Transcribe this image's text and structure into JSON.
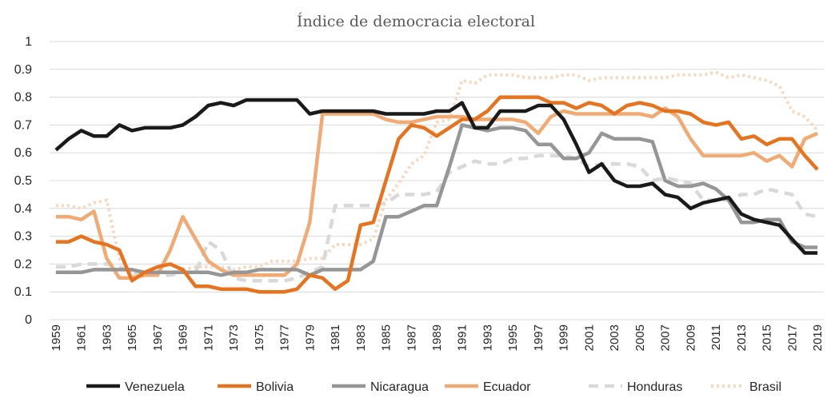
{
  "chart_data": {
    "type": "line",
    "title": "Índice de democracia electoral",
    "xlabel": "",
    "ylabel": "",
    "ylim": [
      0,
      1
    ],
    "yticks": [
      "0",
      "0.1",
      "0.2",
      "0.3",
      "0.4",
      "0.5",
      "0.6",
      "0.7",
      "0.8",
      "0.9",
      "1"
    ],
    "x": [
      1959,
      1960,
      1961,
      1962,
      1963,
      1964,
      1965,
      1966,
      1967,
      1968,
      1969,
      1970,
      1971,
      1972,
      1973,
      1974,
      1975,
      1976,
      1977,
      1978,
      1979,
      1980,
      1981,
      1982,
      1983,
      1984,
      1985,
      1986,
      1987,
      1988,
      1989,
      1990,
      1991,
      1992,
      1993,
      1994,
      1995,
      1996,
      1997,
      1998,
      1999,
      2000,
      2001,
      2002,
      2003,
      2004,
      2005,
      2006,
      2007,
      2008,
      2009,
      2010,
      2011,
      2012,
      2013,
      2014,
      2015,
      2016,
      2017,
      2018,
      2019
    ],
    "xtick_labels": [
      "1959",
      "1961",
      "1963",
      "1965",
      "1967",
      "1969",
      "1971",
      "1973",
      "1975",
      "1977",
      "1979",
      "1981",
      "1983",
      "1985",
      "1987",
      "1989",
      "1991",
      "1993",
      "1995",
      "1997",
      "1999",
      "2001",
      "2003",
      "2005",
      "2007",
      "2009",
      "2011",
      "2013",
      "2015",
      "2017",
      "2019"
    ],
    "grid": true,
    "legend_position": "bottom",
    "series": [
      {
        "name": "Venezuela",
        "color": "#1a1a1a",
        "style": "solid",
        "values": [
          0.61,
          0.65,
          0.68,
          0.66,
          0.66,
          0.7,
          0.68,
          0.69,
          0.69,
          0.69,
          0.7,
          0.73,
          0.77,
          0.78,
          0.77,
          0.79,
          0.79,
          0.79,
          0.79,
          0.79,
          0.74,
          0.75,
          0.75,
          0.75,
          0.75,
          0.75,
          0.74,
          0.74,
          0.74,
          0.74,
          0.75,
          0.75,
          0.78,
          0.69,
          0.69,
          0.75,
          0.75,
          0.75,
          0.77,
          0.77,
          0.72,
          0.63,
          0.53,
          0.56,
          0.5,
          0.48,
          0.48,
          0.49,
          0.45,
          0.44,
          0.4,
          0.42,
          0.43,
          0.44,
          0.38,
          0.36,
          0.35,
          0.34,
          0.29,
          0.24,
          0.24
        ]
      },
      {
        "name": "Bolivia",
        "color": "#e8731f",
        "style": "solid",
        "values": [
          0.28,
          0.28,
          0.3,
          0.28,
          0.27,
          0.25,
          0.14,
          0.17,
          0.19,
          0.2,
          0.18,
          0.12,
          0.12,
          0.11,
          0.11,
          0.11,
          0.1,
          0.1,
          0.1,
          0.11,
          0.16,
          0.15,
          0.11,
          0.14,
          0.34,
          0.35,
          0.5,
          0.65,
          0.7,
          0.69,
          0.66,
          0.69,
          0.72,
          0.72,
          0.75,
          0.8,
          0.8,
          0.8,
          0.8,
          0.78,
          0.78,
          0.76,
          0.78,
          0.77,
          0.74,
          0.77,
          0.78,
          0.77,
          0.75,
          0.75,
          0.74,
          0.71,
          0.7,
          0.71,
          0.65,
          0.66,
          0.63,
          0.65,
          0.65,
          0.59,
          0.54
        ]
      },
      {
        "name": "Nicaragua",
        "color": "#969696",
        "style": "solid",
        "values": [
          0.17,
          0.17,
          0.17,
          0.18,
          0.18,
          0.18,
          0.18,
          0.17,
          0.17,
          0.17,
          0.17,
          0.17,
          0.17,
          0.16,
          0.17,
          0.17,
          0.18,
          0.18,
          0.18,
          0.18,
          0.16,
          0.18,
          0.18,
          0.18,
          0.18,
          0.21,
          0.37,
          0.37,
          0.39,
          0.41,
          0.41,
          0.55,
          0.7,
          0.69,
          0.68,
          0.69,
          0.69,
          0.68,
          0.63,
          0.63,
          0.58,
          0.58,
          0.6,
          0.67,
          0.65,
          0.65,
          0.65,
          0.64,
          0.5,
          0.48,
          0.48,
          0.49,
          0.47,
          0.43,
          0.35,
          0.35,
          0.36,
          0.36,
          0.28,
          0.26,
          0.26
        ]
      },
      {
        "name": "Ecuador",
        "color": "#f2aa74",
        "style": "solid",
        "values": [
          0.37,
          0.37,
          0.36,
          0.39,
          0.22,
          0.15,
          0.15,
          0.16,
          0.16,
          0.25,
          0.37,
          0.29,
          0.21,
          0.18,
          0.16,
          0.16,
          0.16,
          0.16,
          0.16,
          0.2,
          0.35,
          0.74,
          0.74,
          0.74,
          0.74,
          0.74,
          0.72,
          0.71,
          0.71,
          0.72,
          0.73,
          0.73,
          0.73,
          0.72,
          0.72,
          0.72,
          0.72,
          0.71,
          0.67,
          0.73,
          0.75,
          0.74,
          0.74,
          0.74,
          0.74,
          0.74,
          0.74,
          0.73,
          0.76,
          0.73,
          0.65,
          0.59,
          0.59,
          0.59,
          0.59,
          0.6,
          0.57,
          0.59,
          0.55,
          0.65,
          0.67
        ]
      },
      {
        "name": "Honduras",
        "color": "#d9d9d9",
        "style": "dashed",
        "values": [
          0.19,
          0.19,
          0.2,
          0.2,
          0.2,
          0.19,
          0.17,
          0.16,
          0.16,
          0.16,
          0.17,
          0.17,
          0.28,
          0.25,
          0.15,
          0.14,
          0.14,
          0.14,
          0.14,
          0.15,
          0.17,
          0.19,
          0.41,
          0.41,
          0.41,
          0.41,
          0.42,
          0.45,
          0.45,
          0.45,
          0.46,
          0.53,
          0.55,
          0.57,
          0.56,
          0.56,
          0.58,
          0.58,
          0.59,
          0.59,
          0.59,
          0.58,
          0.55,
          0.56,
          0.56,
          0.56,
          0.55,
          0.5,
          0.51,
          0.5,
          0.49,
          0.43,
          0.43,
          0.43,
          0.45,
          0.45,
          0.47,
          0.46,
          0.45,
          0.38,
          0.37
        ]
      },
      {
        "name": "Brasil",
        "color": "#f7d8bf",
        "style": "dotted",
        "values": [
          0.41,
          0.41,
          0.4,
          0.42,
          0.43,
          0.22,
          0.16,
          0.16,
          0.17,
          0.17,
          0.18,
          0.19,
          0.19,
          0.19,
          0.18,
          0.19,
          0.19,
          0.21,
          0.21,
          0.21,
          0.22,
          0.22,
          0.27,
          0.27,
          0.27,
          0.29,
          0.43,
          0.49,
          0.56,
          0.59,
          0.71,
          0.72,
          0.86,
          0.85,
          0.88,
          0.88,
          0.88,
          0.87,
          0.87,
          0.87,
          0.88,
          0.88,
          0.86,
          0.87,
          0.87,
          0.87,
          0.87,
          0.87,
          0.87,
          0.88,
          0.88,
          0.88,
          0.89,
          0.87,
          0.88,
          0.87,
          0.86,
          0.84,
          0.75,
          0.73,
          0.68
        ]
      }
    ]
  }
}
